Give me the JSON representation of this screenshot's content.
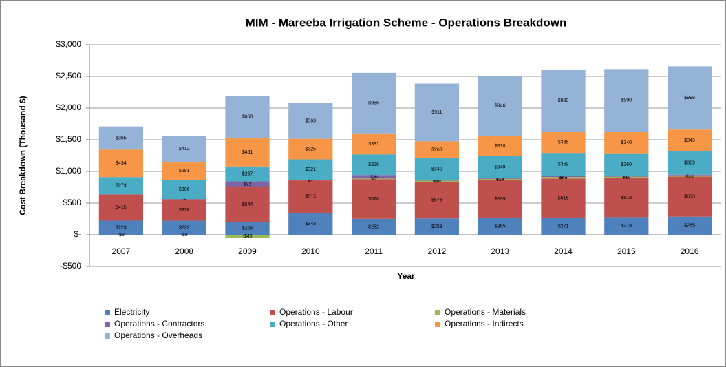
{
  "chart_data": {
    "type": "stacked_bar",
    "title": "MIM - Mareeba Irrigation Scheme - Operations Breakdown",
    "x_label": "Year",
    "y_label": "Cost Breakdown  (Thousand $)",
    "categories": [
      "2007",
      "2008",
      "2009",
      "2010",
      "2011",
      "2012",
      "2013",
      "2014",
      "2015",
      "2016"
    ],
    "series": [
      {
        "name": "Electricity",
        "color": "#4f81bd",
        "values": [
          223,
          222,
          206,
          343,
          252,
          258,
          265,
          271,
          278,
          285
        ],
        "value_labels": [
          "$223",
          "$222",
          "$206",
          "$343",
          "$252",
          "$258",
          "$265",
          "$271",
          "$278",
          "$285"
        ]
      },
      {
        "name": "Operations - Labour",
        "color": "#c0504d",
        "values": [
          415,
          338,
          544,
          515,
          626,
          576,
          599,
          616,
          618,
          633
        ],
        "value_labels": [
          "$415",
          "$338",
          "$544",
          "$515",
          "$626",
          "$576",
          "$599",
          "$616",
          "$618",
          "$633"
        ]
      },
      {
        "name": "Operations - Materials",
        "color": "#9bbb59",
        "values": [
          null,
          -8,
          -48,
          7,
          9,
          20,
          18,
          25,
          20,
          20
        ],
        "value_labels": [
          null,
          "-$8",
          "-$48",
          "$7",
          "$9",
          "$20",
          "$18",
          "$25",
          "$20",
          "$20"
        ]
      },
      {
        "name": "Operations - Contractors",
        "color": "#8064a2",
        "values": [
          -8,
          4,
          92,
          4,
          56,
          13,
          13,
          21,
          10,
          11
        ],
        "value_labels": [
          "-$8",
          "$4",
          "$92",
          "$4",
          "$56",
          "$13",
          "$13",
          "$21",
          "$10",
          "$11"
        ]
      },
      {
        "name": "Operations - Other",
        "color": "#4bacc6",
        "values": [
          273,
          306,
          237,
          321,
          326,
          340,
          349,
          359,
          360,
          369
        ],
        "value_labels": [
          "$273",
          "$306",
          "$237",
          "$321",
          "$326",
          "$340",
          "$349",
          "$359",
          "$360",
          "$369"
        ]
      },
      {
        "name": "Operations - Indirects",
        "color": "#f79646",
        "values": [
          434,
          281,
          451,
          325,
          331,
          268,
          318,
          336,
          340,
          343
        ],
        "value_labels": [
          "$434",
          "$281",
          "$451",
          "$325",
          "$331",
          "$268",
          "$318",
          "$336",
          "$340",
          "$343"
        ]
      },
      {
        "name": "Operations - Overheads",
        "color": "#95b3d7",
        "values": [
          365,
          412,
          660,
          563,
          956,
          911,
          946,
          980,
          990,
          998
        ],
        "value_labels": [
          "$365",
          "$412",
          "$660",
          "$563",
          "$956",
          "$911",
          "$946",
          "$980",
          "$990",
          "$998"
        ]
      }
    ],
    "ylim": [
      -500,
      3000
    ],
    "yticks": [
      {
        "value": -500,
        "label": "-$500"
      },
      {
        "value": 0,
        "label": "$-"
      },
      {
        "value": 500,
        "label": "$500"
      },
      {
        "value": 1000,
        "label": "$1,000"
      },
      {
        "value": 1500,
        "label": "$1,500"
      },
      {
        "value": 2000,
        "label": "$2,000"
      },
      {
        "value": 2500,
        "label": "$2,500"
      },
      {
        "value": 3000,
        "label": "$3,000"
      }
    ],
    "grid": true,
    "legend": "bottom"
  }
}
